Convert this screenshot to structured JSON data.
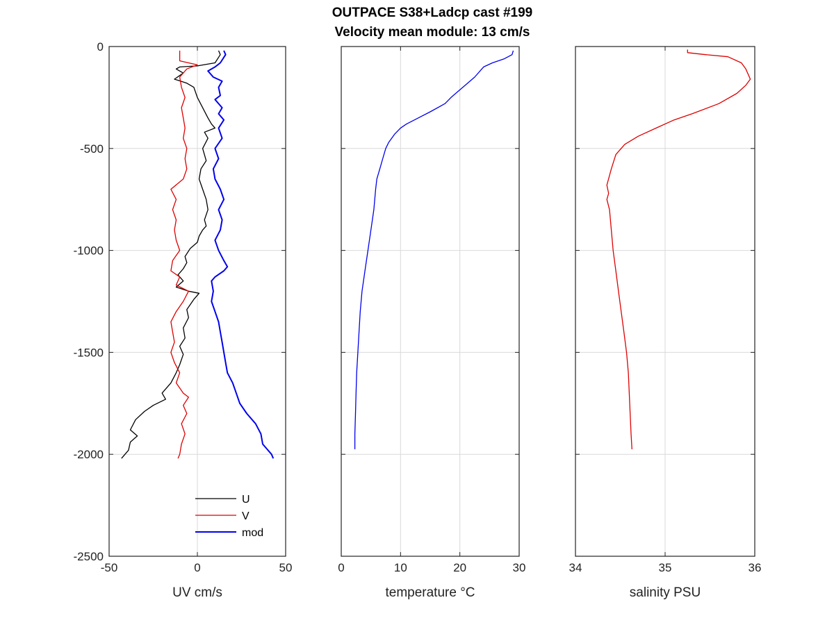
{
  "figure": {
    "title_line1": "OUTPACE S38+Ladcp cast #199",
    "title_line2": "Velocity mean module:  13 cm/s"
  },
  "chart_data": [
    {
      "type": "line",
      "xlabel": "UV cm/s",
      "ylabel": "",
      "xlim": [
        -50,
        50
      ],
      "ylim": [
        -2500,
        0
      ],
      "xticks": [
        -50,
        0,
        50
      ],
      "yticks": [
        0,
        -500,
        -1000,
        -1500,
        -2000,
        -2500
      ],
      "grid": true,
      "legend": "bottom-center",
      "series": [
        {
          "name": "U",
          "color": "#000000",
          "points": [
            [
              12,
              -20
            ],
            [
              13,
              -40
            ],
            [
              10,
              -80
            ],
            [
              0,
              -95
            ],
            [
              -10,
              -100
            ],
            [
              -12,
              -110
            ],
            [
              -8,
              -130
            ],
            [
              -13,
              -160
            ],
            [
              -6,
              -180
            ],
            [
              -2,
              -200
            ],
            [
              0,
              -250
            ],
            [
              3,
              -300
            ],
            [
              6,
              -350
            ],
            [
              8,
              -380
            ],
            [
              10,
              -400
            ],
            [
              4,
              -420
            ],
            [
              6,
              -450
            ],
            [
              3,
              -500
            ],
            [
              5,
              -560
            ],
            [
              2,
              -600
            ],
            [
              1,
              -650
            ],
            [
              3,
              -700
            ],
            [
              5,
              -750
            ],
            [
              6,
              -800
            ],
            [
              4,
              -850
            ],
            [
              5,
              -880
            ],
            [
              3,
              -900
            ],
            [
              1,
              -930
            ],
            [
              0,
              -960
            ],
            [
              -4,
              -990
            ],
            [
              -7,
              -1030
            ],
            [
              -6,
              -1060
            ],
            [
              -8,
              -1090
            ],
            [
              -11,
              -1120
            ],
            [
              -8,
              -1150
            ],
            [
              -12,
              -1180
            ],
            [
              -5,
              -1200
            ],
            [
              1,
              -1210
            ],
            [
              -2,
              -1240
            ],
            [
              -6,
              -1290
            ],
            [
              -5,
              -1330
            ],
            [
              -8,
              -1380
            ],
            [
              -7,
              -1430
            ],
            [
              -10,
              -1470
            ],
            [
              -8,
              -1510
            ],
            [
              -10,
              -1560
            ],
            [
              -12,
              -1600
            ],
            [
              -15,
              -1650
            ],
            [
              -20,
              -1700
            ],
            [
              -18,
              -1730
            ],
            [
              -25,
              -1760
            ],
            [
              -30,
              -1790
            ],
            [
              -35,
              -1830
            ],
            [
              -38,
              -1880
            ],
            [
              -34,
              -1910
            ],
            [
              -38,
              -1940
            ],
            [
              -39,
              -1980
            ],
            [
              -43,
              -2020
            ]
          ]
        },
        {
          "name": "V",
          "color": "#dd0000",
          "points": [
            [
              -10,
              -20
            ],
            [
              -10,
              -70
            ],
            [
              -5,
              -80
            ],
            [
              0,
              -90
            ],
            [
              -6,
              -110
            ],
            [
              -10,
              -150
            ],
            [
              -9,
              -200
            ],
            [
              -7,
              -250
            ],
            [
              -9,
              -300
            ],
            [
              -8,
              -350
            ],
            [
              -7,
              -400
            ],
            [
              -8,
              -450
            ],
            [
              -6,
              -500
            ],
            [
              -7,
              -550
            ],
            [
              -6,
              -600
            ],
            [
              -8,
              -650
            ],
            [
              -15,
              -700
            ],
            [
              -12,
              -750
            ],
            [
              -14,
              -800
            ],
            [
              -12,
              -850
            ],
            [
              -13,
              -900
            ],
            [
              -12,
              -950
            ],
            [
              -10,
              -1000
            ],
            [
              -14,
              -1050
            ],
            [
              -15,
              -1100
            ],
            [
              -10,
              -1130
            ],
            [
              -12,
              -1170
            ],
            [
              -5,
              -1200
            ],
            [
              -8,
              -1250
            ],
            [
              -12,
              -1300
            ],
            [
              -15,
              -1350
            ],
            [
              -14,
              -1400
            ],
            [
              -13,
              -1450
            ],
            [
              -15,
              -1500
            ],
            [
              -13,
              -1550
            ],
            [
              -10,
              -1600
            ],
            [
              -12,
              -1650
            ],
            [
              -8,
              -1700
            ],
            [
              -5,
              -1720
            ],
            [
              -8,
              -1760
            ],
            [
              -6,
              -1800
            ],
            [
              -9,
              -1850
            ],
            [
              -7,
              -1900
            ],
            [
              -9,
              -1950
            ],
            [
              -10,
              -2000
            ],
            [
              -11,
              -2020
            ]
          ]
        },
        {
          "name": "mod",
          "color": "#0000ee",
          "points": [
            [
              15,
              -20
            ],
            [
              16,
              -40
            ],
            [
              13,
              -80
            ],
            [
              10,
              -100
            ],
            [
              6,
              -120
            ],
            [
              9,
              -150
            ],
            [
              14,
              -170
            ],
            [
              12,
              -200
            ],
            [
              13,
              -240
            ],
            [
              10,
              -260
            ],
            [
              14,
              -300
            ],
            [
              12,
              -330
            ],
            [
              15,
              -360
            ],
            [
              12,
              -400
            ],
            [
              14,
              -450
            ],
            [
              10,
              -500
            ],
            [
              12,
              -550
            ],
            [
              9,
              -600
            ],
            [
              10,
              -650
            ],
            [
              13,
              -700
            ],
            [
              15,
              -750
            ],
            [
              12,
              -800
            ],
            [
              14,
              -850
            ],
            [
              13,
              -900
            ],
            [
              10,
              -950
            ],
            [
              12,
              -1000
            ],
            [
              15,
              -1050
            ],
            [
              17,
              -1080
            ],
            [
              15,
              -1100
            ],
            [
              10,
              -1130
            ],
            [
              8,
              -1150
            ],
            [
              9,
              -1200
            ],
            [
              8,
              -1250
            ],
            [
              10,
              -1300
            ],
            [
              12,
              -1350
            ],
            [
              13,
              -1400
            ],
            [
              14,
              -1450
            ],
            [
              15,
              -1500
            ],
            [
              16,
              -1550
            ],
            [
              17,
              -1600
            ],
            [
              20,
              -1650
            ],
            [
              22,
              -1700
            ],
            [
              24,
              -1750
            ],
            [
              28,
              -1800
            ],
            [
              33,
              -1850
            ],
            [
              36,
              -1900
            ],
            [
              37,
              -1950
            ],
            [
              42,
              -2000
            ],
            [
              43,
              -2020
            ]
          ]
        }
      ]
    },
    {
      "type": "line",
      "xlabel": "temperature °C",
      "ylabel": "",
      "xlim": [
        0,
        30
      ],
      "ylim": [
        -2500,
        0
      ],
      "xticks": [
        0,
        10,
        20,
        30
      ],
      "yticks": [
        0,
        -500,
        -1000,
        -1500,
        -2000,
        -2500
      ],
      "grid": true,
      "series": [
        {
          "color": "#0000ee",
          "points": [
            [
              29.0,
              -20
            ],
            [
              28.8,
              -40
            ],
            [
              27.5,
              -60
            ],
            [
              25.5,
              -80
            ],
            [
              24.0,
              -100
            ],
            [
              22.5,
              -150
            ],
            [
              20.5,
              -200
            ],
            [
              18.5,
              -250
            ],
            [
              17.5,
              -280
            ],
            [
              15.0,
              -320
            ],
            [
              13.0,
              -350
            ],
            [
              11.0,
              -380
            ],
            [
              10.0,
              -400
            ],
            [
              9.0,
              -430
            ],
            [
              8.0,
              -470
            ],
            [
              7.5,
              -500
            ],
            [
              7.0,
              -550
            ],
            [
              6.5,
              -600
            ],
            [
              6.0,
              -650
            ],
            [
              5.8,
              -700
            ],
            [
              5.5,
              -800
            ],
            [
              5.0,
              -900
            ],
            [
              4.5,
              -1000
            ],
            [
              4.0,
              -1100
            ],
            [
              3.5,
              -1200
            ],
            [
              3.2,
              -1300
            ],
            [
              3.0,
              -1400
            ],
            [
              2.8,
              -1500
            ],
            [
              2.6,
              -1600
            ],
            [
              2.5,
              -1700
            ],
            [
              2.4,
              -1800
            ],
            [
              2.3,
              -1900
            ],
            [
              2.3,
              -1975
            ]
          ]
        }
      ]
    },
    {
      "type": "line",
      "xlabel": "salinity PSU",
      "ylabel": "",
      "xlim": [
        34,
        36
      ],
      "ylim": [
        -2500,
        0
      ],
      "xticks": [
        34,
        35,
        36
      ],
      "yticks": [
        0,
        -500,
        -1000,
        -1500,
        -2000,
        -2500
      ],
      "grid": true,
      "series": [
        {
          "color": "#dd0000",
          "points": [
            [
              35.25,
              -15
            ],
            [
              35.25,
              -30
            ],
            [
              35.45,
              -40
            ],
            [
              35.7,
              -50
            ],
            [
              35.85,
              -80
            ],
            [
              35.9,
              -110
            ],
            [
              35.95,
              -160
            ],
            [
              35.9,
              -190
            ],
            [
              35.8,
              -230
            ],
            [
              35.6,
              -280
            ],
            [
              35.3,
              -330
            ],
            [
              35.1,
              -360
            ],
            [
              34.9,
              -400
            ],
            [
              34.7,
              -440
            ],
            [
              34.55,
              -480
            ],
            [
              34.45,
              -530
            ],
            [
              34.4,
              -600
            ],
            [
              34.35,
              -680
            ],
            [
              34.37,
              -720
            ],
            [
              34.35,
              -750
            ],
            [
              34.38,
              -800
            ],
            [
              34.4,
              -900
            ],
            [
              34.42,
              -1000
            ],
            [
              34.45,
              -1100
            ],
            [
              34.48,
              -1200
            ],
            [
              34.51,
              -1300
            ],
            [
              34.54,
              -1400
            ],
            [
              34.57,
              -1500
            ],
            [
              34.59,
              -1600
            ],
            [
              34.6,
              -1700
            ],
            [
              34.61,
              -1800
            ],
            [
              34.62,
              -1900
            ],
            [
              34.63,
              -1975
            ]
          ]
        }
      ]
    }
  ]
}
